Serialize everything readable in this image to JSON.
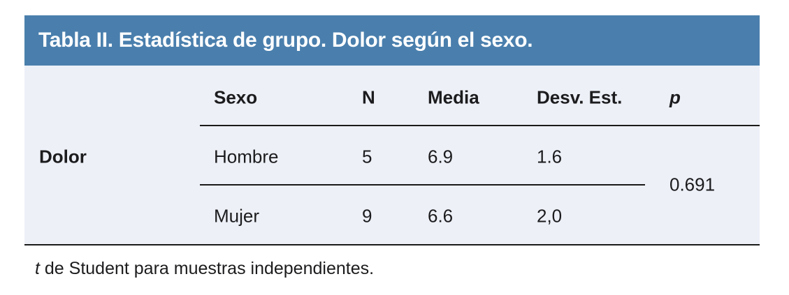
{
  "title": "Tabla II. Estadística de grupo. Dolor según el sexo.",
  "colors": {
    "header_bg": "#4a7fad",
    "body_bg": "#edf0f7",
    "text": "#1c1c1e",
    "rule": "#1a1a1a",
    "title_text": "#ffffff"
  },
  "table": {
    "row_group_label": "Dolor",
    "columns": {
      "sexo": "Sexo",
      "n": "N",
      "media": "Media",
      "desv": "Desv. Est.",
      "p": "p"
    },
    "rows": [
      {
        "sexo": "Hombre",
        "n": "5",
        "media": "6.9",
        "desv": "1.6"
      },
      {
        "sexo": "Mujer",
        "n": "9",
        "media": "6.6",
        "desv": "2,0"
      }
    ],
    "p_value": "0.691"
  },
  "footnote": {
    "italic_prefix": "t",
    "rest": " de Student para muestras independientes."
  }
}
